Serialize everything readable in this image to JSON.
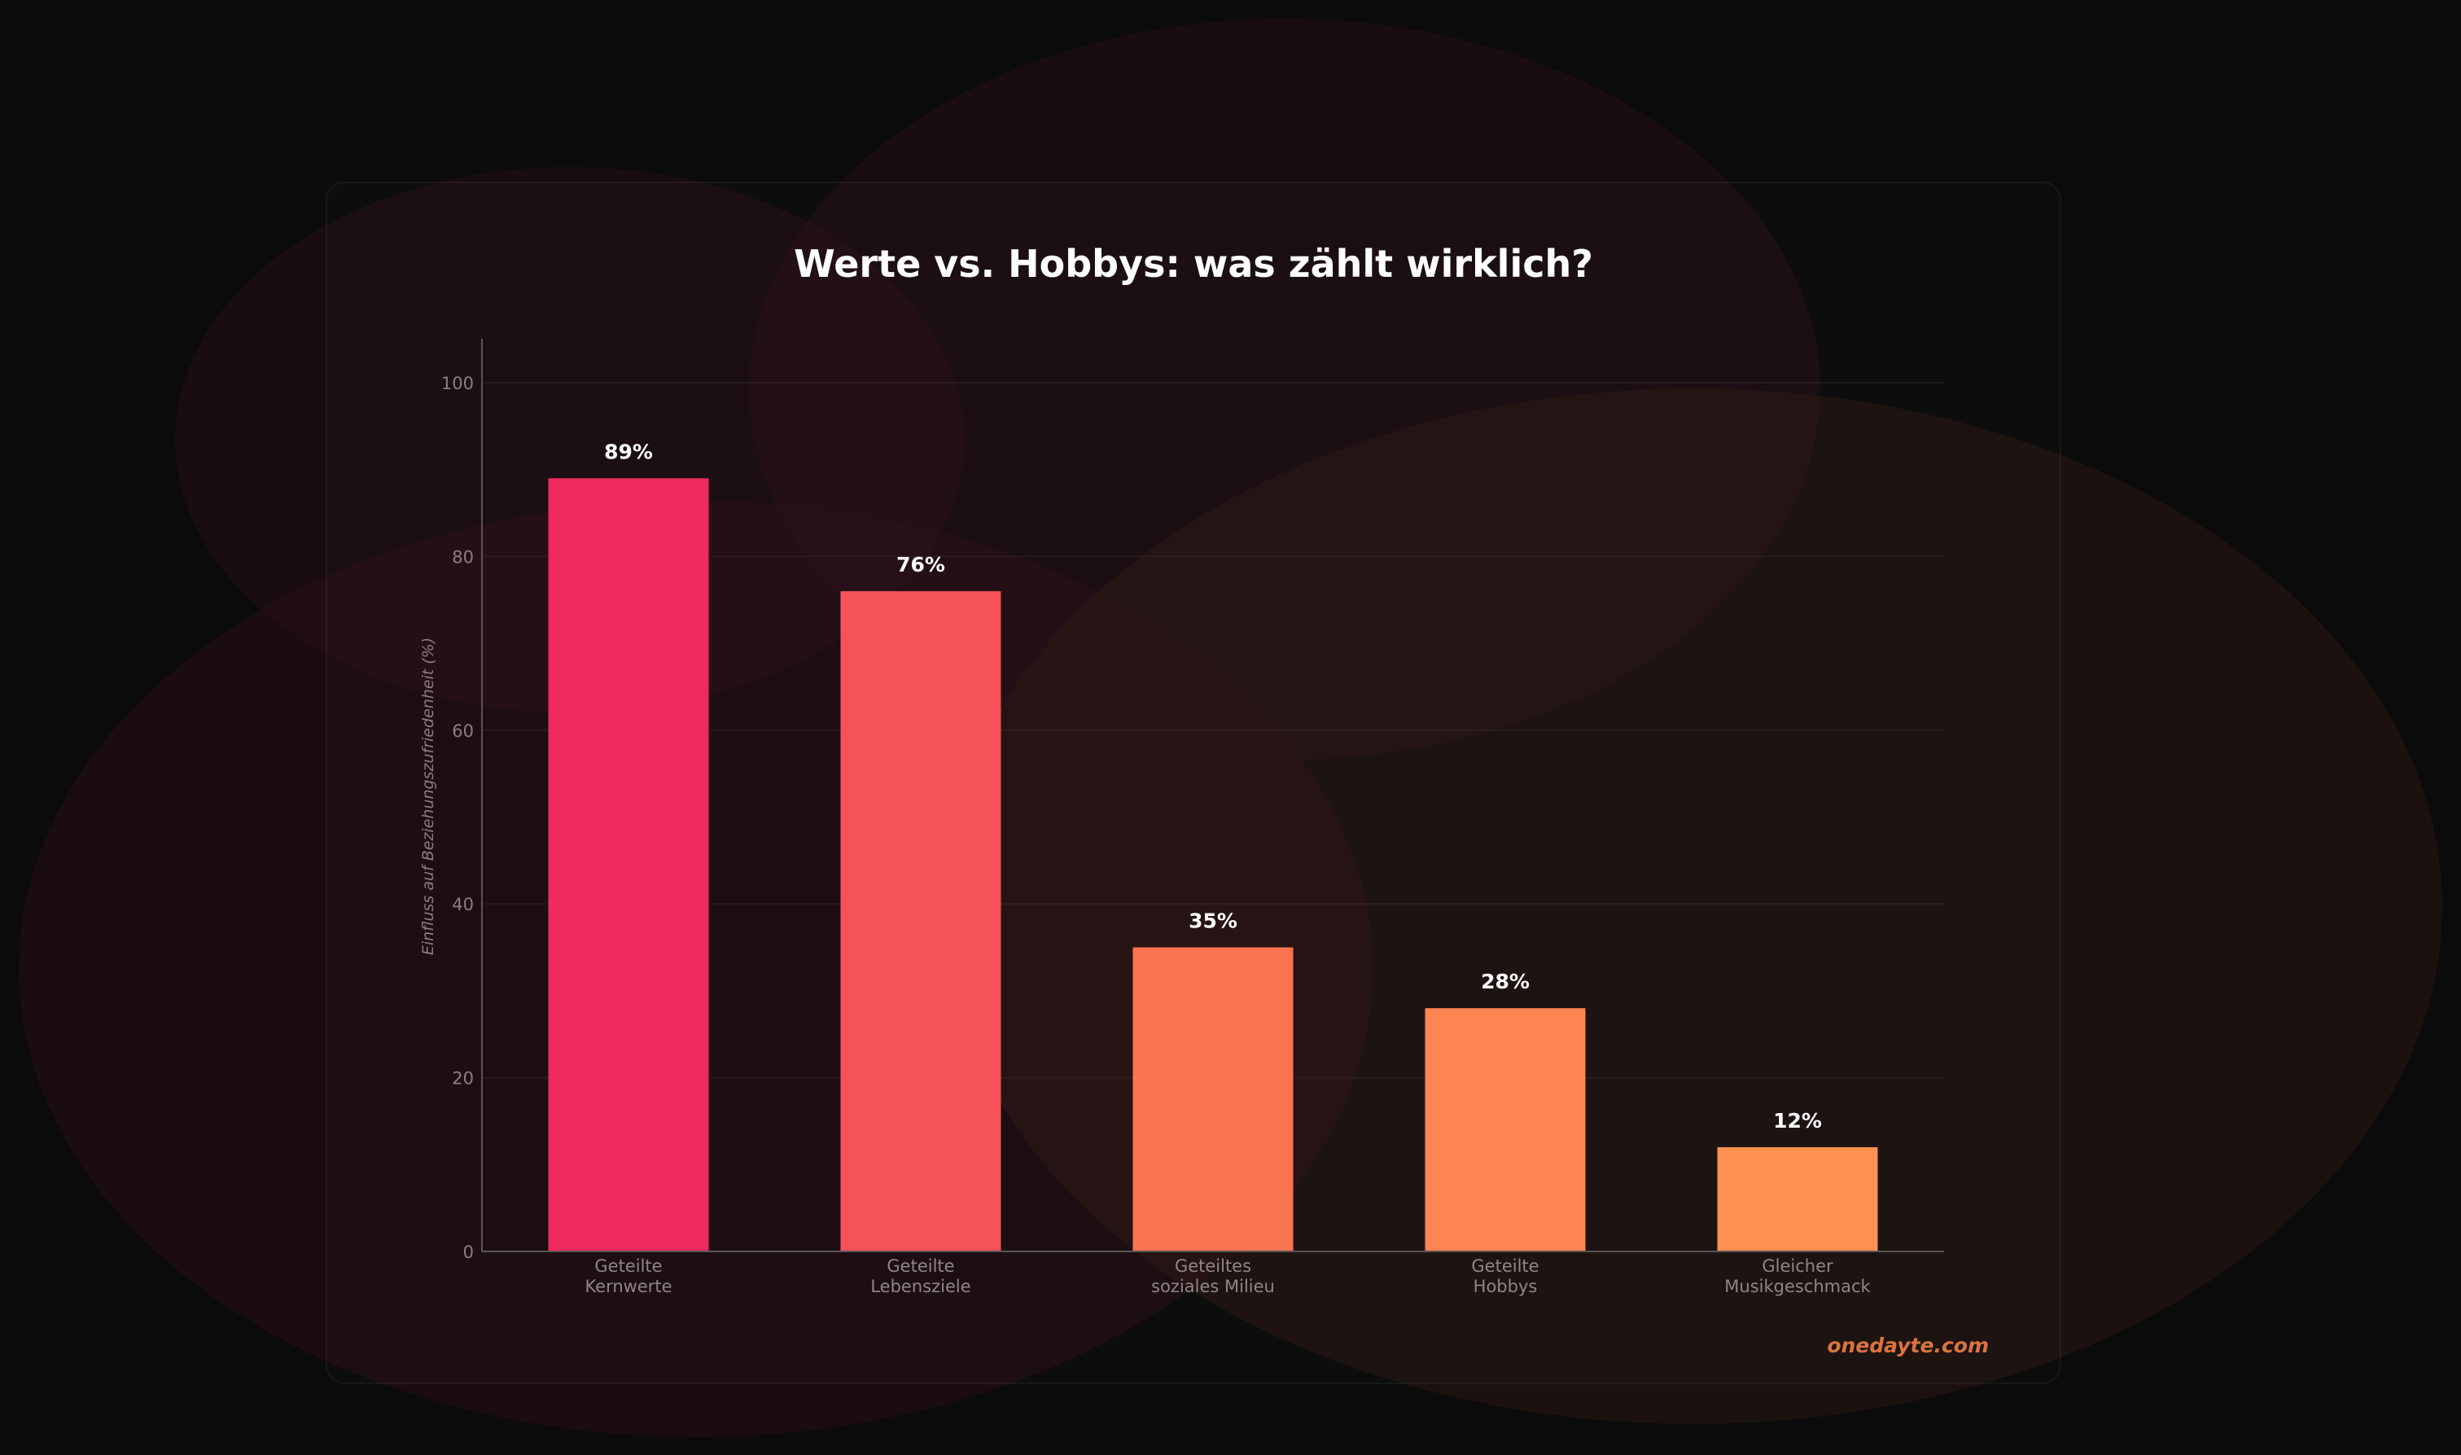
{
  "brand": "onedayte.com",
  "colors": {
    "background": "#0b0b0b",
    "bars": [
      "#ef2a5f",
      "#f5525a",
      "#fb7452",
      "#ff8552",
      "#ff9152"
    ],
    "watermark": "#d9743f"
  },
  "chart_data": {
    "type": "bar",
    "title": "Werte vs. Hobbys: was zählt wirklich?",
    "xlabel": "",
    "ylabel": "Einfluss auf Beziehungszufriedenheit (%)",
    "categories": [
      [
        "Geteilte",
        "Kernwerte"
      ],
      [
        "Geteilte",
        "Lebensziele"
      ],
      [
        "Geteiltes",
        "soziales Milieu"
      ],
      [
        "Geteilte",
        "Hobbys"
      ],
      [
        "Gleicher",
        "Musikgeschmack"
      ]
    ],
    "values": [
      89,
      76,
      35,
      28,
      12
    ],
    "data_labels": [
      "89%",
      "76%",
      "35%",
      "28%",
      "12%"
    ],
    "ylim": [
      0,
      105
    ],
    "yticks": [
      0,
      20,
      40,
      60,
      80,
      100
    ],
    "grid": true,
    "legend": "none"
  }
}
